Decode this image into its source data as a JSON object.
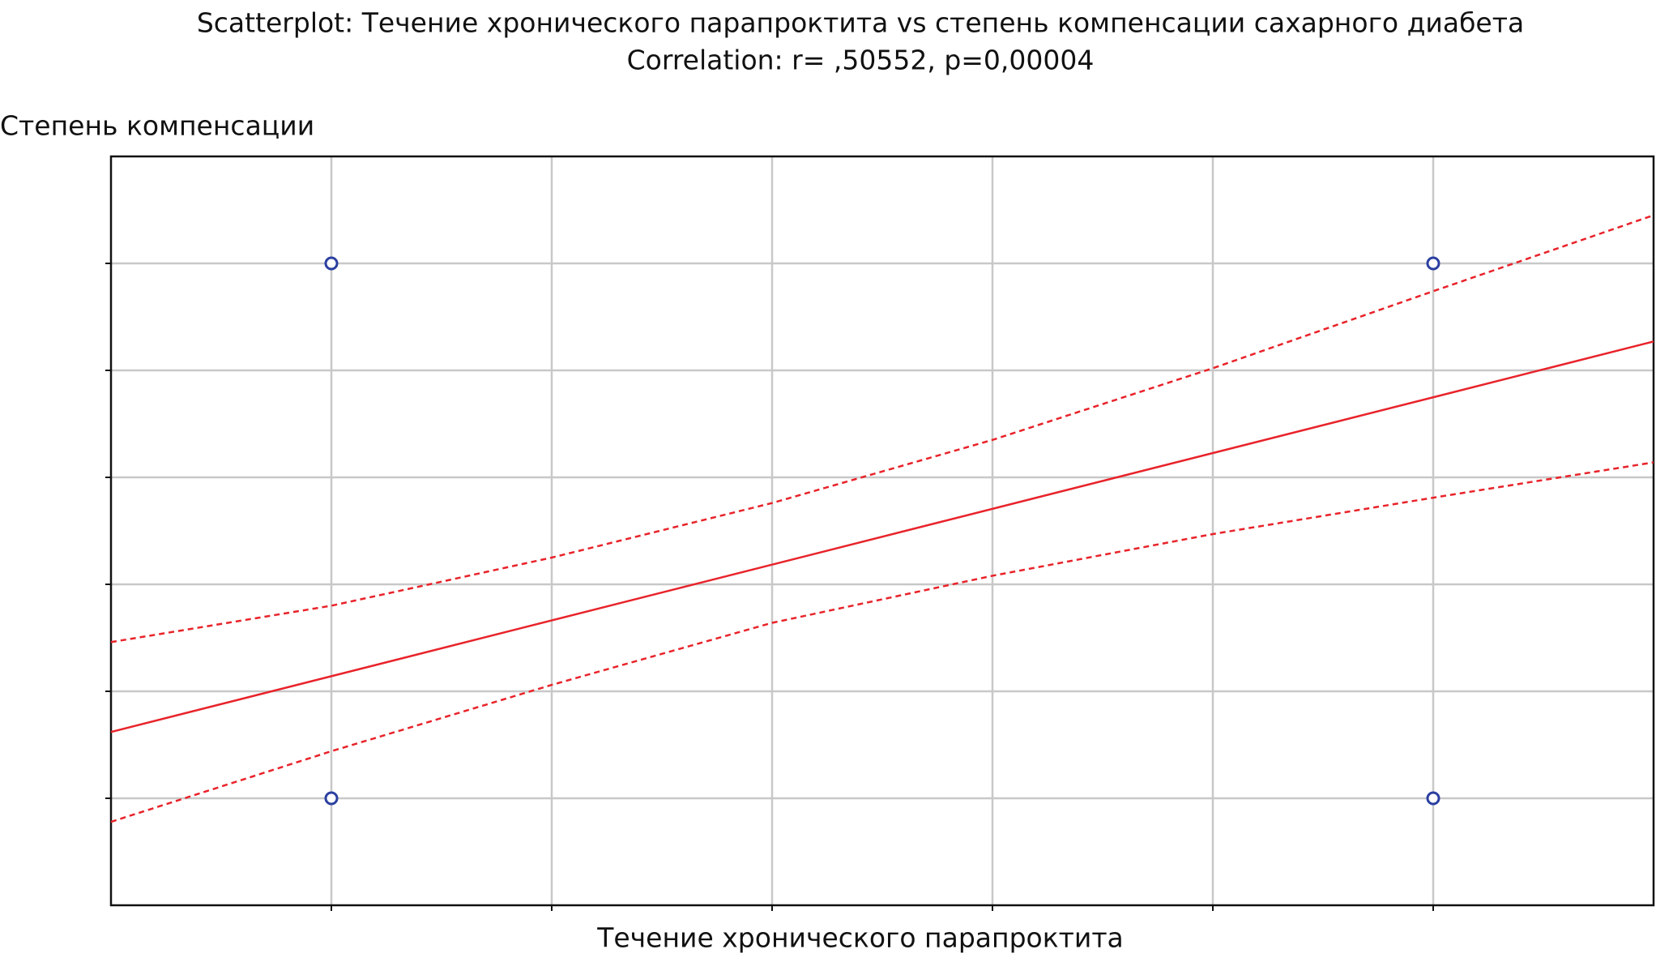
{
  "chart_data": {
    "type": "scatter",
    "title": "Scatterplot: Течение хронического парапроктита vs степень компенсации сахарного диабета",
    "subtitle": "Correlation: r= ,50552, p=0,00004",
    "x_label": "Течение хронического парапроктита",
    "y_label": "Степень компенсации",
    "x": [
      1,
      1,
      6,
      6
    ],
    "values": [
      6,
      1,
      6,
      1
    ],
    "color": "#2a3fa0",
    "xlim": [
      0,
      7
    ],
    "xticks": [
      1,
      2,
      3,
      4,
      5,
      6
    ],
    "ylim": [
      0,
      7
    ],
    "yticks": [
      1,
      2,
      3,
      4,
      5,
      6
    ],
    "grid": true,
    "lines": [
      {
        "x": [
          0,
          7
        ],
        "values": [
          1.62,
          5.27
        ],
        "color": "#e8232a",
        "dashed": false
      },
      {
        "x": [
          0,
          1,
          2,
          3,
          4,
          5,
          6,
          7
        ],
        "values": [
          2.46,
          2.8,
          3.25,
          3.76,
          4.35,
          5.02,
          5.74,
          6.45
        ],
        "color": "#e8232a",
        "dashed": true
      },
      {
        "x": [
          0,
          1,
          2,
          3,
          4,
          5,
          6,
          7
        ],
        "values": [
          0.78,
          1.44,
          2.06,
          2.64,
          3.08,
          3.47,
          3.81,
          4.14
        ],
        "color": "#e8232a",
        "dashed": true
      }
    ]
  }
}
